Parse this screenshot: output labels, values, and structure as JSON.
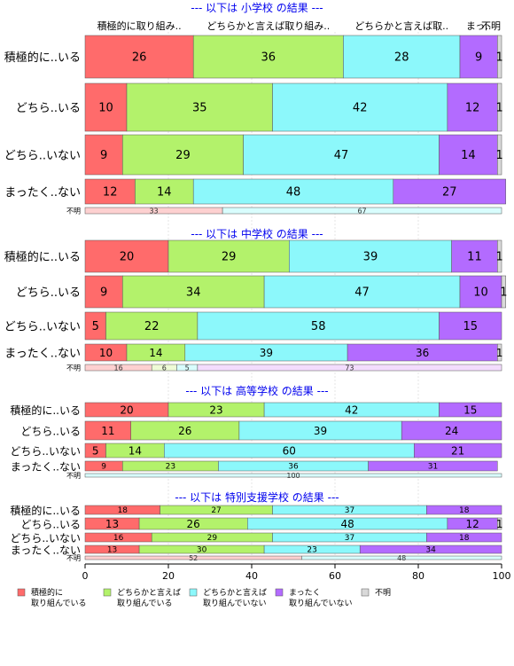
{
  "chart_data": {
    "type": "bar",
    "orientation": "horizontal",
    "stacked": "percent",
    "xlim": [
      0,
      100
    ],
    "xticks": [
      0,
      20,
      40,
      60,
      80,
      100
    ],
    "categories": [
      "積極的に取り組んでいる",
      "どちらかと言えば取り組んでいる",
      "どちらかと言えば取り組んでいない",
      "まったく取り組んでいない",
      "不明"
    ],
    "legend": {
      "position": "bottom",
      "items": [
        {
          "line1": "積極的に",
          "line2": "取り組んでいる",
          "color": "#ff6b6b"
        },
        {
          "line1": "どちらかと言えば",
          "line2": "取り組んでいる",
          "color": "#b3f26b"
        },
        {
          "line1": "どちらかと言えば",
          "line2": "取り組んでいない",
          "color": "#8cf8fb"
        },
        {
          "line1": "まったく",
          "line2": "取り組んでいない",
          "color": "#b36bff"
        },
        {
          "line1": "不明",
          "line2": "",
          "color": "#d9d9d9"
        }
      ]
    },
    "bar_colors": [
      "#ff6b6b",
      "#b3f26b",
      "#8cf8fb",
      "#b36bff",
      "#d9d9d9"
    ],
    "minor_colors": [
      "#fdd0d0",
      "#eefbd6",
      "#d8fdfd",
      "#f3dcfd",
      "#eeeeee"
    ],
    "top_headers": [
      "積極的に取り組み..",
      "どちらかと言えば取り組み..",
      "どちらかと言えば取..",
      "まっ..",
      "不明"
    ],
    "panels": [
      {
        "title": "--- 以下は 小学校 の結果 ---",
        "rows": [
          {
            "label": "積極的に..いる",
            "values": [
              26,
              36,
              28,
              9,
              1
            ]
          },
          {
            "label": "どちら..いる",
            "values": [
              10,
              35,
              42,
              12,
              1
            ]
          },
          {
            "label": "どちら..いない",
            "values": [
              9,
              29,
              47,
              14,
              1
            ]
          },
          {
            "label": "まったく..ない",
            "values": [
              12,
              14,
              48,
              27,
              0
            ]
          },
          {
            "label": "不明",
            "values": [
              33,
              0,
              67,
              0,
              0
            ]
          }
        ]
      },
      {
        "title": "--- 以下は 中学校 の結果 ---",
        "rows": [
          {
            "label": "積極的に..いる",
            "values": [
              20,
              29,
              39,
              11,
              1
            ]
          },
          {
            "label": "どちら..いる",
            "values": [
              9,
              34,
              47,
              10,
              1
            ]
          },
          {
            "label": "どちら..いない",
            "values": [
              5,
              22,
              58,
              15,
              0
            ]
          },
          {
            "label": "まったく..ない",
            "values": [
              10,
              14,
              39,
              36,
              1
            ]
          },
          {
            "label": "不明",
            "values": [
              16,
              6,
              5,
              73,
              0
            ]
          }
        ]
      },
      {
        "title": "--- 以下は 高等学校 の結果 ---",
        "rows": [
          {
            "label": "積極的に..いる",
            "values": [
              20,
              23,
              42,
              15,
              0
            ]
          },
          {
            "label": "どちら..いる",
            "values": [
              11,
              26,
              39,
              24,
              0
            ]
          },
          {
            "label": "どちら..いない",
            "values": [
              5,
              14,
              60,
              21,
              0
            ]
          },
          {
            "label": "まったく..ない",
            "values": [
              9,
              23,
              36,
              31,
              0
            ]
          },
          {
            "label": "不明",
            "values": [
              0,
              0,
              100,
              0,
              0
            ]
          }
        ]
      },
      {
        "title": "--- 以下は 特別支援学校 の結果 ---",
        "rows": [
          {
            "label": "積極的に..いる",
            "values": [
              18,
              27,
              37,
              18,
              0
            ]
          },
          {
            "label": "どちら..いる",
            "values": [
              13,
              26,
              48,
              12,
              1
            ]
          },
          {
            "label": "どちら..いない",
            "values": [
              16,
              29,
              37,
              18,
              0
            ]
          },
          {
            "label": "まったく..ない",
            "values": [
              13,
              30,
              23,
              34,
              0
            ]
          },
          {
            "label": "不明",
            "values": [
              52,
              0,
              48,
              0,
              0
            ]
          }
        ]
      }
    ]
  }
}
